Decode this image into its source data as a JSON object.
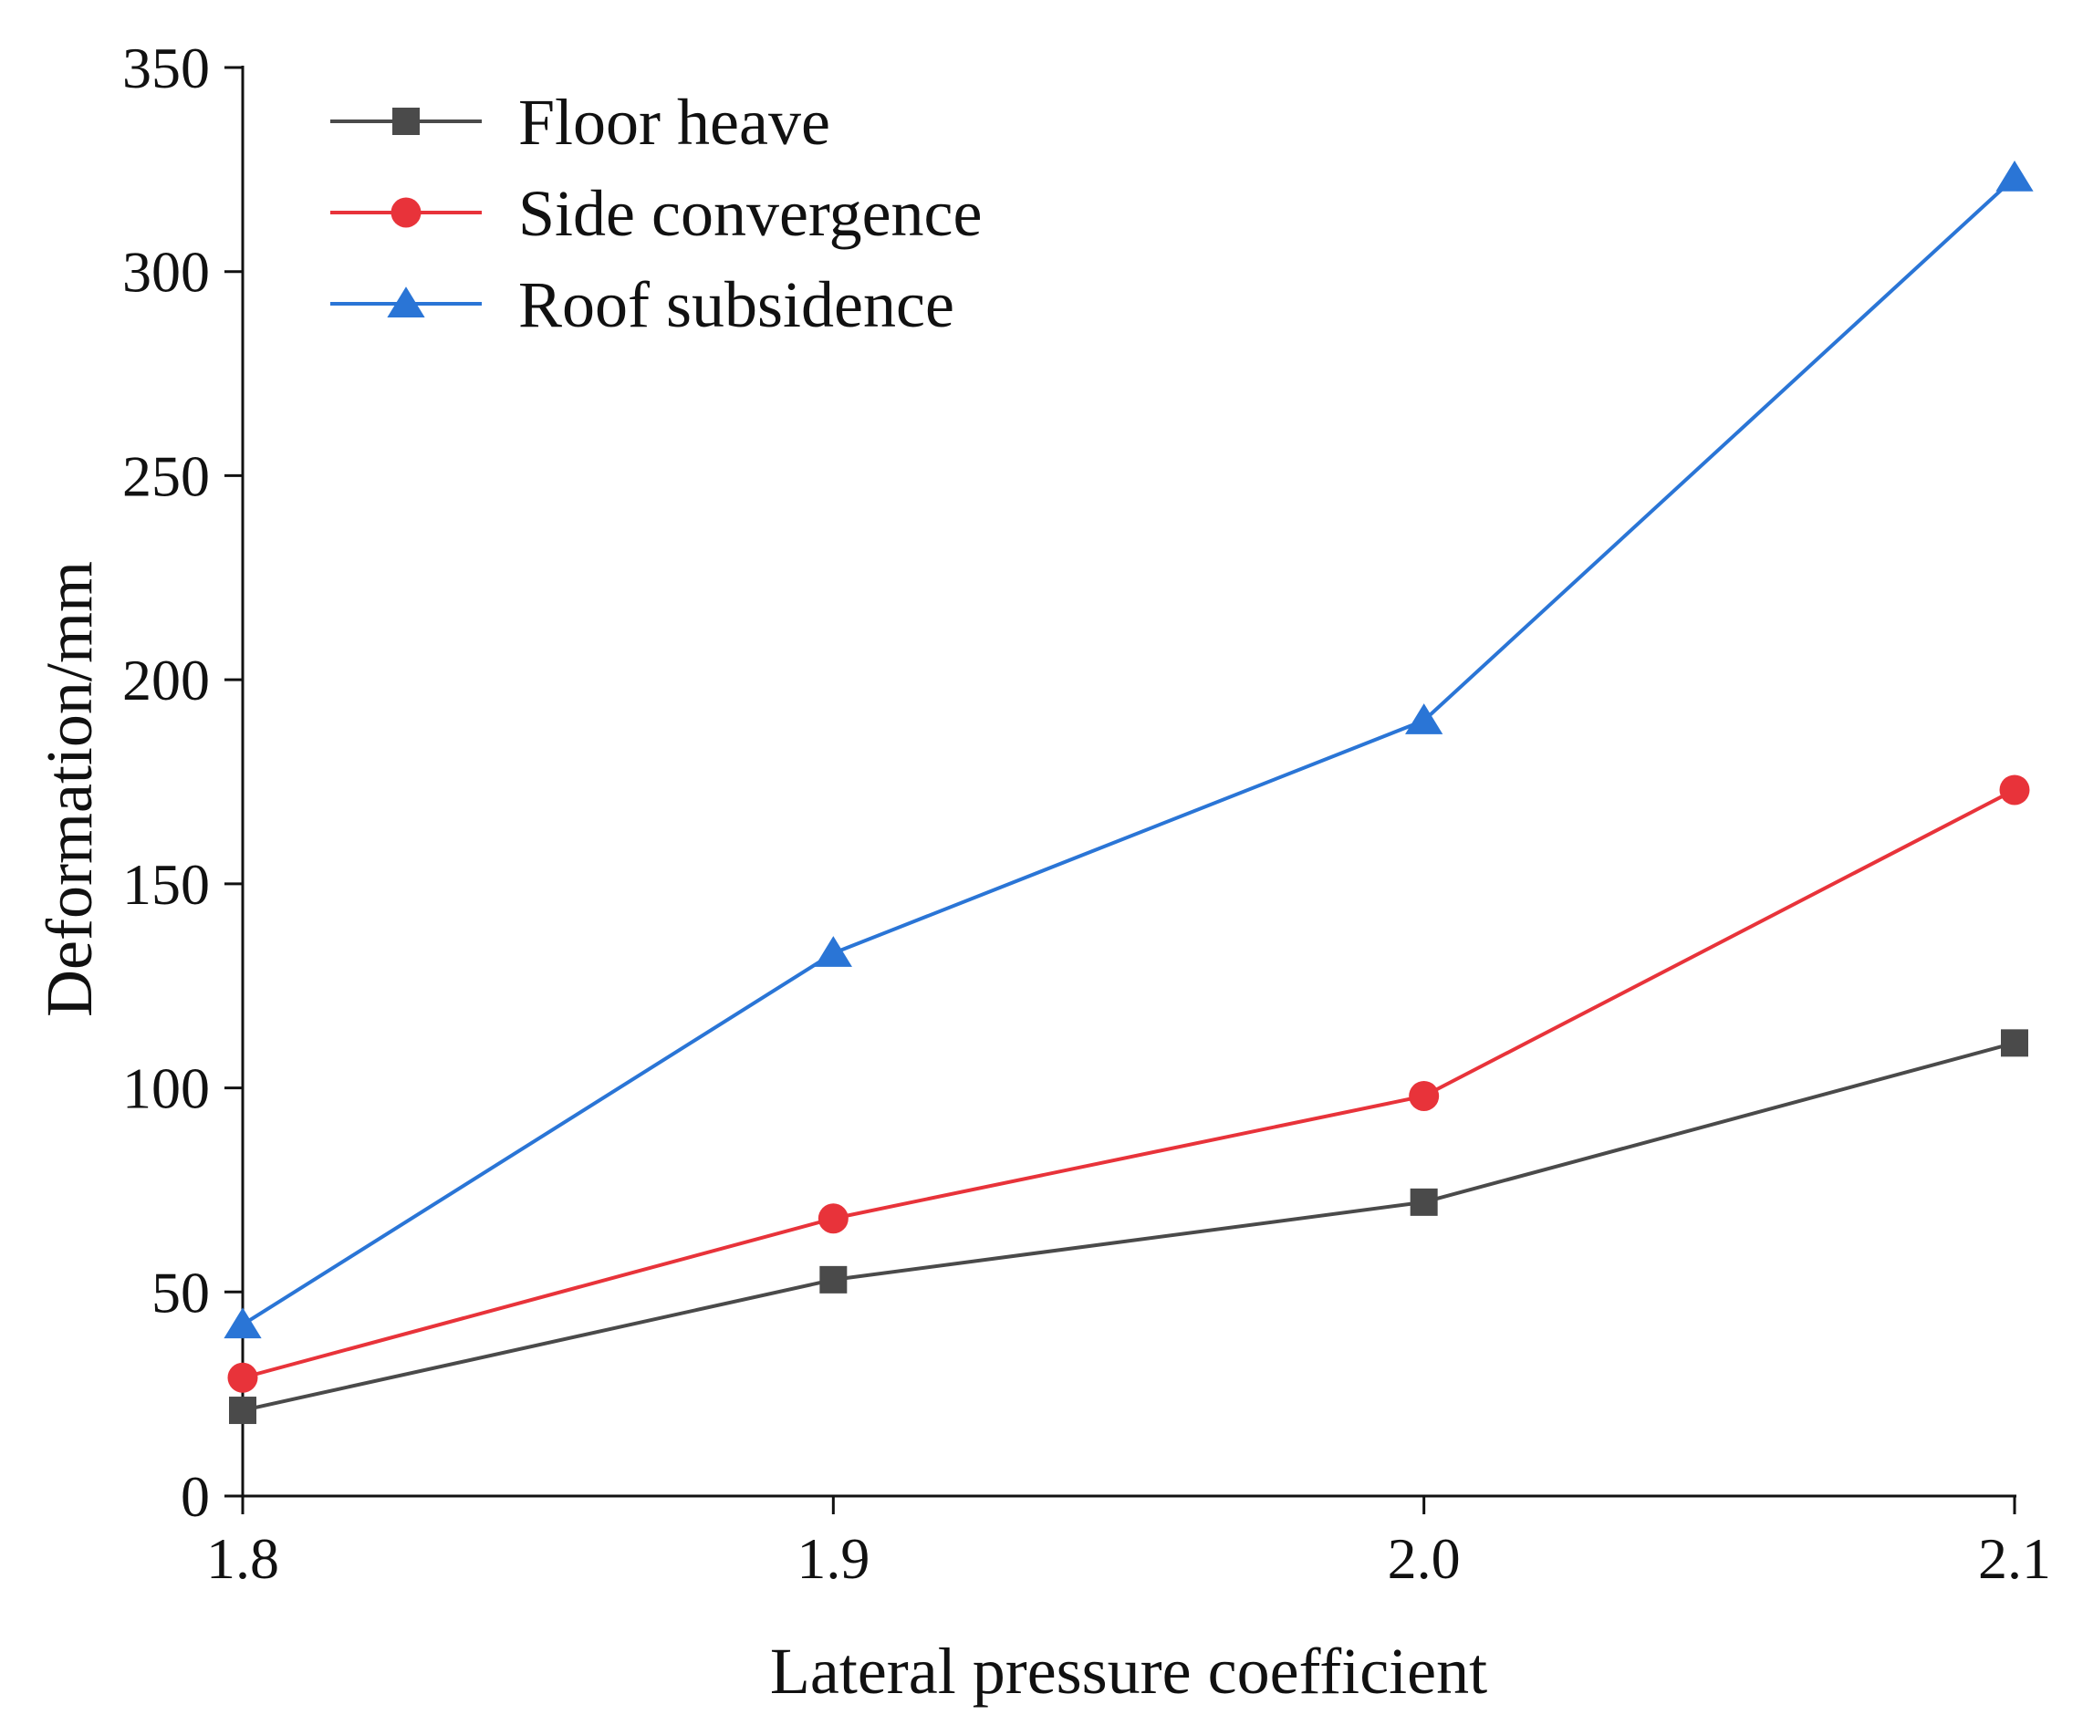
{
  "chart_data": {
    "type": "line",
    "title": "",
    "xlabel": "Lateral pressure coefficient",
    "ylabel": "Deformation/mm",
    "x": [
      1.8,
      1.9,
      2.0,
      2.1
    ],
    "x_tick_labels": [
      "1.8",
      "1.9",
      "2.0",
      "2.1"
    ],
    "xlim": [
      1.8,
      2.1
    ],
    "ylim": [
      0,
      350
    ],
    "y_ticks": [
      0,
      50,
      100,
      150,
      200,
      250,
      300,
      350
    ],
    "y_tick_labels": [
      "0",
      "50",
      "100",
      "150",
      "200",
      "250",
      "300",
      "350"
    ],
    "grid": false,
    "legend_position": "top-left",
    "series": [
      {
        "name": "Floor heave",
        "marker": "square",
        "color": "#4a4a4a",
        "values": [
          21,
          53,
          72,
          111
        ]
      },
      {
        "name": "Side convergence",
        "marker": "circle",
        "color": "#e8333a",
        "values": [
          29,
          68,
          98,
          173
        ]
      },
      {
        "name": "Roof subsidence",
        "marker": "triangle",
        "color": "#2a75d6",
        "values": [
          42,
          133,
          190,
          323
        ]
      }
    ]
  }
}
